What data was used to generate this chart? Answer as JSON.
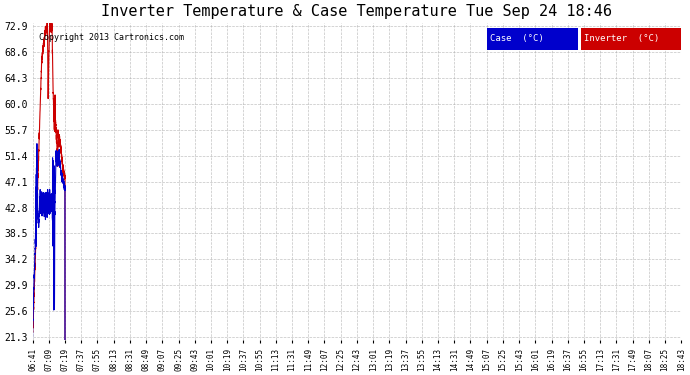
{
  "title": "Inverter Temperature & Case Temperature Tue Sep 24 18:46",
  "copyright": "Copyright 2013 Cartronics.com",
  "legend_case_label": "Case  (°C)",
  "legend_inverter_label": "Inverter  (°C)",
  "case_color": "#0000cc",
  "inverter_color": "#cc0000",
  "legend_case_bg": "#0000cc",
  "legend_inverter_bg": "#cc0000",
  "bg_color": "#ffffff",
  "plot_bg_color": "#ffffff",
  "grid_color": "#aaaaaa",
  "yticks": [
    21.3,
    25.6,
    29.9,
    34.2,
    38.5,
    42.8,
    47.1,
    51.4,
    55.7,
    60.0,
    64.3,
    68.6,
    72.9
  ],
  "xtick_labels": [
    "06:41",
    "07:09",
    "07:19",
    "07:37",
    "07:55",
    "08:13",
    "08:31",
    "08:49",
    "09:07",
    "09:25",
    "09:43",
    "10:01",
    "10:19",
    "10:37",
    "10:55",
    "11:13",
    "11:31",
    "11:49",
    "12:07",
    "12:25",
    "12:43",
    "13:01",
    "13:19",
    "13:37",
    "13:55",
    "14:13",
    "14:31",
    "14:49",
    "15:07",
    "15:25",
    "15:43",
    "16:01",
    "16:19",
    "16:37",
    "16:55",
    "17:13",
    "17:31",
    "17:49",
    "18:07",
    "18:25",
    "18:43"
  ],
  "ymin": 21.3,
  "ymax": 72.9
}
